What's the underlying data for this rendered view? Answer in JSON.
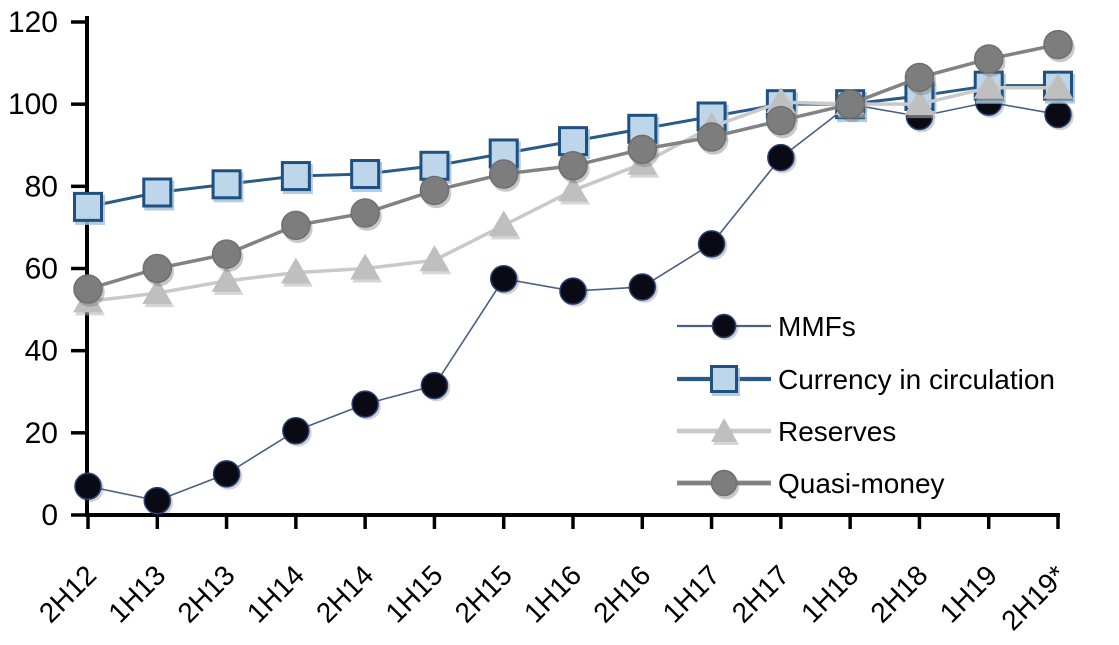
{
  "chart_data": {
    "type": "line",
    "title": "",
    "categories": [
      "2H12",
      "1H13",
      "2H13",
      "1H14",
      "2H14",
      "1H15",
      "2H15",
      "1H16",
      "2H16",
      "1H17",
      "2H17",
      "1H18",
      "2H18",
      "1H19",
      "2H19*"
    ],
    "series": [
      {
        "name": "MMFs",
        "marker": "circle",
        "marker_size": 26,
        "marker_fill": "#0a0a14",
        "marker_stroke": "#27406e",
        "line_color": "#4a5f86",
        "line_width": 1.6,
        "values": [
          7,
          3.5,
          10,
          20.5,
          27,
          31.5,
          57.5,
          54.5,
          55.5,
          66,
          87,
          100,
          97,
          100.5,
          97.5
        ]
      },
      {
        "name": "Currency in circulation",
        "marker": "square",
        "marker_size": 27,
        "marker_fill": "#bdd6ea",
        "marker_stroke": "#1f5080",
        "line_color": "#2b5a86",
        "line_width": 3,
        "values": [
          75,
          78.5,
          80.5,
          82.5,
          83,
          85,
          88,
          91,
          94,
          97,
          100,
          100,
          102,
          104.5,
          104.5
        ]
      },
      {
        "name": "Reserves",
        "marker": "triangle",
        "marker_size": 28,
        "marker_fill": "#bfbfbf",
        "marker_stroke": "#bfbfbf",
        "line_color": "#c9c9c9",
        "line_width": 3.5,
        "values": [
          52,
          54,
          57,
          59,
          60,
          62,
          70.5,
          79,
          85.5,
          94.5,
          100.5,
          100,
          100,
          104,
          104
        ]
      },
      {
        "name": "Quasi-money",
        "marker": "circle",
        "marker_size": 28,
        "marker_fill": "#7d7d7d",
        "marker_stroke": "#6f6f6f",
        "line_color": "#828282",
        "line_width": 3.5,
        "values": [
          55,
          60,
          63.5,
          70.5,
          73.5,
          79,
          83,
          85,
          89,
          92,
          96,
          100,
          106.5,
          111,
          114.5
        ]
      }
    ],
    "y_axis": {
      "min": 0,
      "max": 120,
      "step": 20,
      "tick_labels": [
        "0",
        "20",
        "40",
        "60",
        "80",
        "100",
        "120"
      ]
    },
    "x_axis": {
      "label_rotation": 45,
      "tick_labels": [
        "2H12",
        "1H13",
        "2H13",
        "1H14",
        "2H14",
        "1H15",
        "2H15",
        "1H16",
        "2H16",
        "1H17",
        "2H17",
        "1H18",
        "2H18",
        "1H19",
        "2H19*"
      ]
    },
    "legend": {
      "position": "inside-right",
      "items": [
        "MMFs",
        "Currency in circulation",
        "Reserves",
        "Quasi-money"
      ]
    },
    "axis_color": "#000000",
    "background_color": "#ffffff",
    "grid": "off"
  }
}
